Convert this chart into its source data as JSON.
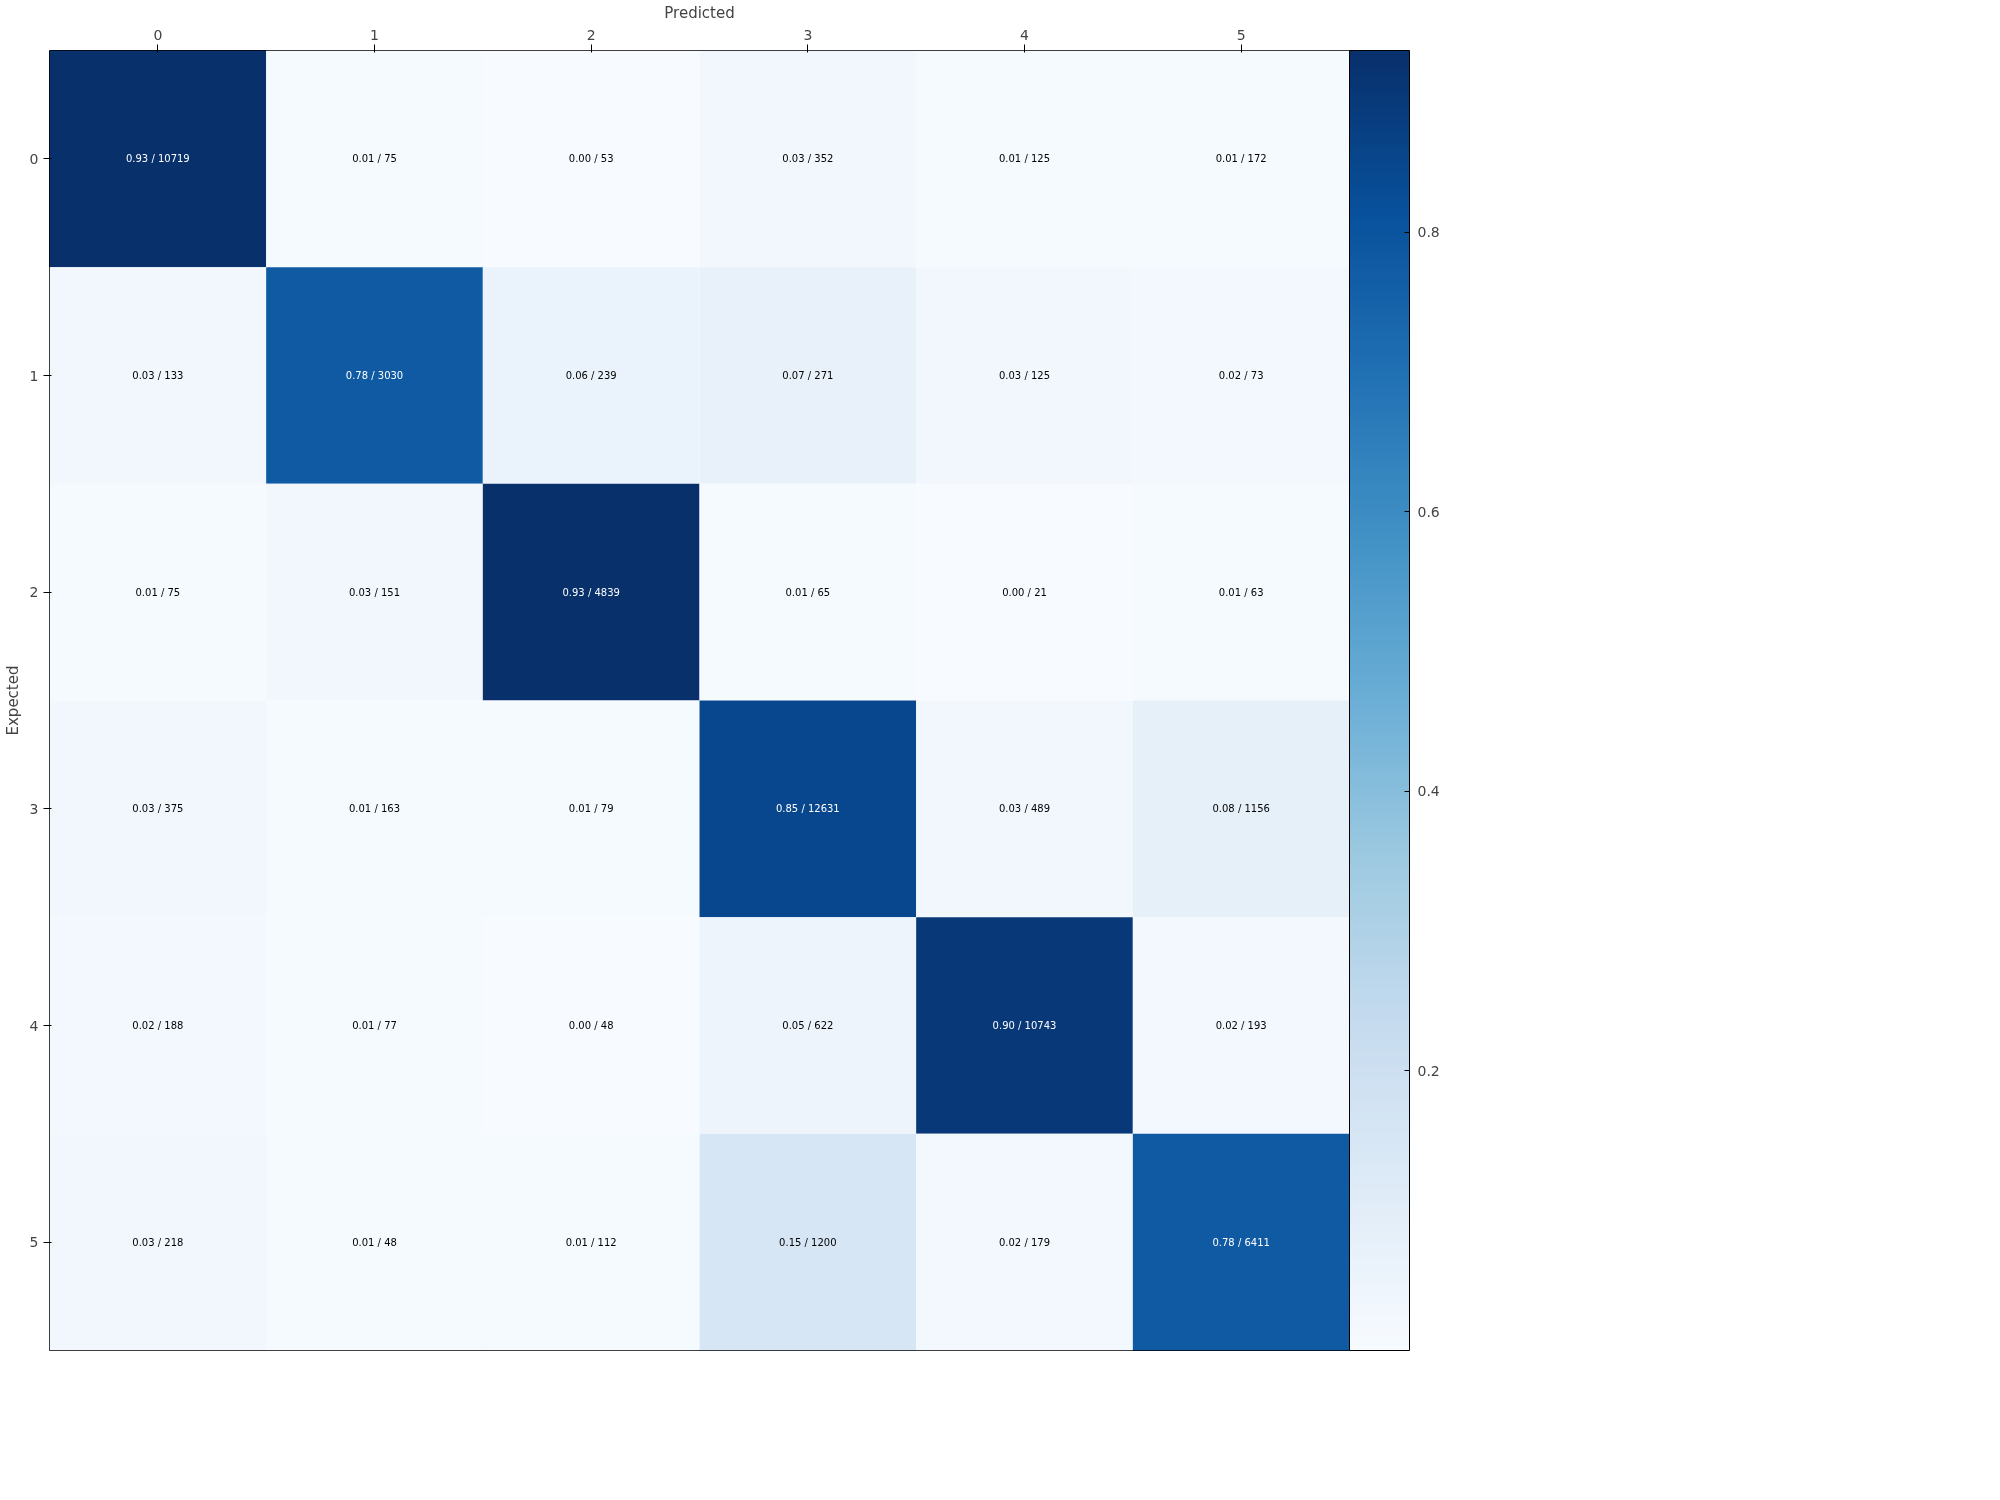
{
  "chart_data": {
    "type": "heatmap",
    "xlabel": "Predicted",
    "ylabel": "Expected",
    "categories": [
      "0",
      "1",
      "2",
      "3",
      "4",
      "5"
    ],
    "y_categories": [
      "0",
      "1",
      "2",
      "3",
      "4",
      "5"
    ],
    "cells": [
      [
        0.93,
        0.01,
        0.0,
        0.03,
        0.01,
        0.01
      ],
      [
        0.03,
        0.78,
        0.06,
        0.07,
        0.03,
        0.02
      ],
      [
        0.01,
        0.03,
        0.93,
        0.01,
        0.0,
        0.01
      ],
      [
        0.03,
        0.01,
        0.01,
        0.85,
        0.03,
        0.08
      ],
      [
        0.02,
        0.01,
        0.0,
        0.05,
        0.9,
        0.02
      ],
      [
        0.03,
        0.01,
        0.01,
        0.15,
        0.02,
        0.78
      ]
    ],
    "cell_labels": [
      [
        "0.93 / 10719",
        "0.01 / 75",
        "0.00 / 53",
        "0.03 / 352",
        "0.01 / 125",
        "0.01 / 172"
      ],
      [
        "0.03 / 133",
        "0.78 / 3030",
        "0.06 / 239",
        "0.07 / 271",
        "0.03 / 125",
        "0.02 / 73"
      ],
      [
        "0.01 / 75",
        "0.03 / 151",
        "0.93 / 4839",
        "0.01 / 65",
        "0.00 / 21",
        "0.01 / 63"
      ],
      [
        "0.03 / 375",
        "0.01 / 163",
        "0.01 / 79",
        "0.85 / 12631",
        "0.03 / 489",
        "0.08 / 1156"
      ],
      [
        "0.02 / 188",
        "0.01 / 77",
        "0.00 / 48",
        "0.05 / 622",
        "0.90 / 10743",
        "0.02 / 193"
      ],
      [
        "0.03 / 218",
        "0.01 / 48",
        "0.01 / 112",
        "0.15 / 1200",
        "0.02 / 179",
        "0.78 / 6411"
      ]
    ],
    "clim": [
      0.0,
      0.93
    ],
    "cticks": [
      0.2,
      0.4,
      0.6,
      0.8
    ],
    "grid": false
  }
}
